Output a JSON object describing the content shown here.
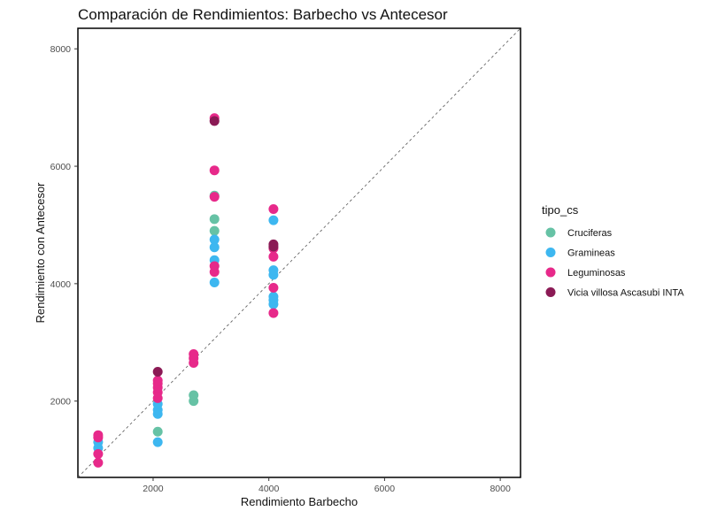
{
  "chart_data": {
    "type": "scatter",
    "title": "Comparación de Rendimientos: Barbecho vs Antecesor",
    "xlabel": "Rendimiento Barbecho",
    "ylabel": "Rendimiento con Antecesor",
    "xlim": [
      700,
      8350
    ],
    "ylim": [
      700,
      8350
    ],
    "x_ticks": [
      2000,
      4000,
      6000,
      8000
    ],
    "y_ticks": [
      2000,
      4000,
      6000,
      8000
    ],
    "x_tick_labels": [
      "2000",
      "4000",
      "6000",
      "8000"
    ],
    "y_tick_labels": [
      "2000",
      "4000",
      "6000",
      "8000"
    ],
    "reference_line": {
      "style": "dashed",
      "slope": 1,
      "intercept": 0
    },
    "grid": false,
    "legend": {
      "title": "tipo_cs",
      "position": "right"
    },
    "series": [
      {
        "name": "Cruciferas",
        "color": "#66C2A5",
        "points": [
          [
            2700,
            2000
          ],
          [
            2700,
            2100
          ],
          [
            2080,
            1480
          ],
          [
            3060,
            5100
          ],
          [
            3060,
            4900
          ],
          [
            3060,
            5500
          ]
        ]
      },
      {
        "name": "Gramineas",
        "color": "#3DB7F0",
        "points": [
          [
            1050,
            1200
          ],
          [
            1050,
            1300
          ],
          [
            2080,
            1300
          ],
          [
            2080,
            1780
          ],
          [
            2080,
            1850
          ],
          [
            2080,
            1950
          ],
          [
            3060,
            4020
          ],
          [
            3060,
            4400
          ],
          [
            3060,
            4620
          ],
          [
            3060,
            4750
          ],
          [
            4080,
            3650
          ],
          [
            4080,
            3720
          ],
          [
            4080,
            3780
          ],
          [
            4080,
            4150
          ],
          [
            4080,
            4230
          ],
          [
            4080,
            5080
          ]
        ]
      },
      {
        "name": "Leguminosas",
        "color": "#E7298A",
        "points": [
          [
            1050,
            950
          ],
          [
            1050,
            1100
          ],
          [
            1050,
            1380
          ],
          [
            1050,
            1420
          ],
          [
            2080,
            2050
          ],
          [
            2080,
            2150
          ],
          [
            2080,
            2230
          ],
          [
            2080,
            2300
          ],
          [
            2080,
            2350
          ],
          [
            2700,
            2650
          ],
          [
            2700,
            2730
          ],
          [
            2700,
            2800
          ],
          [
            3060,
            4200
          ],
          [
            3060,
            4300
          ],
          [
            3060,
            5480
          ],
          [
            3060,
            5930
          ],
          [
            3060,
            6820
          ],
          [
            4080,
            3500
          ],
          [
            4080,
            3930
          ],
          [
            4080,
            4460
          ],
          [
            4080,
            4600
          ],
          [
            4080,
            5270
          ]
        ]
      },
      {
        "name": "Vicia villosa Ascasubi INTA",
        "color": "#8B1A55",
        "points": [
          [
            2080,
            2500
          ],
          [
            3060,
            6770
          ],
          [
            4080,
            4670
          ],
          [
            4080,
            4630
          ]
        ]
      }
    ]
  }
}
